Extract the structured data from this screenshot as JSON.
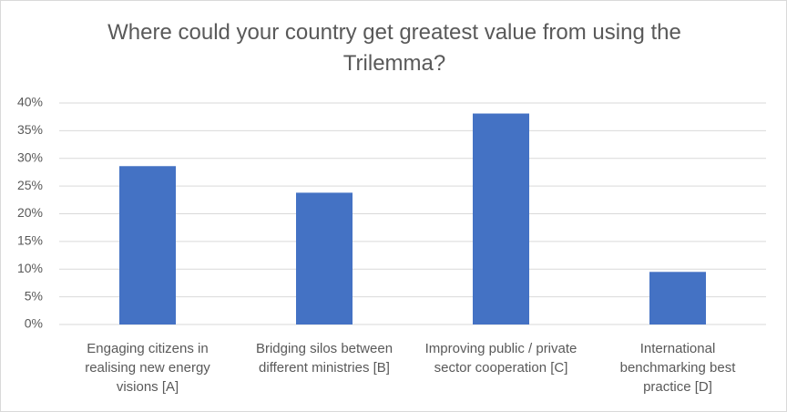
{
  "chart_data": {
    "type": "bar",
    "title": "Where could your country get greatest value from using the Trilemma?",
    "categories": [
      "Engaging citizens in realising new energy visions [A]",
      "Bridging silos between different ministries [B]",
      "Improving public / private sector cooperation [C]",
      "International benchmarking best practice [D]"
    ],
    "values": [
      28.6,
      23.8,
      38.1,
      9.5
    ],
    "color": "#4472c4",
    "ylim": [
      0,
      40
    ],
    "yticks": [
      {
        "value": 0,
        "label": "0%"
      },
      {
        "value": 5,
        "label": "5%"
      },
      {
        "value": 10,
        "label": "10%"
      },
      {
        "value": 15,
        "label": "15%"
      },
      {
        "value": 20,
        "label": "20%"
      },
      {
        "value": 25,
        "label": "25%"
      },
      {
        "value": 30,
        "label": "30%"
      },
      {
        "value": 35,
        "label": "35%"
      },
      {
        "value": 40,
        "label": "40%"
      }
    ],
    "grid": true
  }
}
